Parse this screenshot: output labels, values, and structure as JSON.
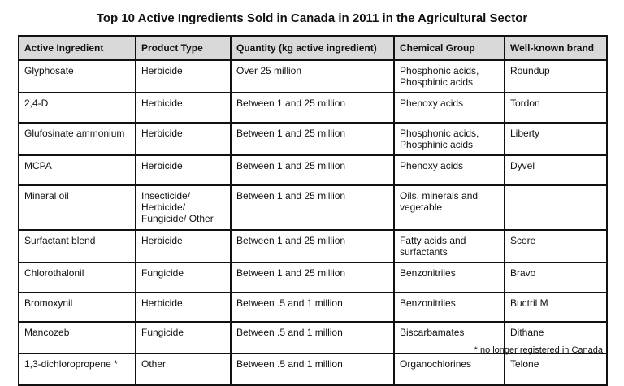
{
  "title": "Top 10 Active Ingredients Sold in Canada in 2011 in the Agricultural Sector",
  "headers": [
    "Active Ingredient",
    "Product Type",
    "Quantity (kg active ingredient)",
    "Chemical Group",
    "Well-known brand"
  ],
  "rows": [
    [
      "Glyphosate",
      "Herbicide",
      "Over 25 million",
      "Phosphonic acids, Phosphinic acids",
      "Roundup"
    ],
    [
      "2,4-D",
      "Herbicide",
      "Between 1 and 25 million",
      "Phenoxy acids",
      "Tordon"
    ],
    [
      "Glufosinate ammonium",
      "Herbicide",
      "Between 1 and 25 million",
      "Phosphonic acids, Phosphinic acids",
      "Liberty"
    ],
    [
      "MCPA",
      "Herbicide",
      "Between 1 and 25 million",
      "Phenoxy acids",
      "Dyvel"
    ],
    [
      "Mineral oil",
      "Insecticide/ Herbicide/ Fungicide/ Other",
      "Between 1 and 25 million",
      "Oils, minerals and vegetable",
      ""
    ],
    [
      "Surfactant blend",
      "Herbicide",
      "Between 1 and 25 million",
      "Fatty acids and surfactants",
      "Score"
    ],
    [
      "Chlorothalonil",
      "Fungicide",
      "Between 1 and 25 million",
      "Benzonitriles",
      "Bravo"
    ],
    [
      "Bromoxynil",
      "Herbicide",
      "Between .5 and 1 million",
      "Benzonitriles",
      "Buctril M"
    ],
    [
      "Mancozeb",
      "Fungicide",
      "Between .5 and 1 million",
      "Biscarbamates",
      "Dithane"
    ],
    [
      "1,3-dichloropropene *",
      "Other",
      "Between .5 and 1 million",
      "Organochlorines",
      "Telone"
    ]
  ],
  "footnote": "* no longer registered in Canada"
}
